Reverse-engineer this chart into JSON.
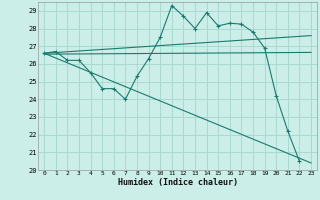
{
  "title": "",
  "xlabel": "Humidex (Indice chaleur)",
  "bg_color": "#cceee8",
  "grid_color": "#aad8d0",
  "line_color": "#1a7a6e",
  "xlim": [
    -0.5,
    23.5
  ],
  "ylim": [
    20,
    29.5
  ],
  "yticks": [
    20,
    21,
    22,
    23,
    24,
    25,
    26,
    27,
    28,
    29
  ],
  "xticks": [
    0,
    1,
    2,
    3,
    4,
    5,
    6,
    7,
    8,
    9,
    10,
    11,
    12,
    13,
    14,
    15,
    16,
    17,
    18,
    19,
    20,
    21,
    22,
    23
  ],
  "main_x": [
    0,
    1,
    2,
    3,
    4,
    5,
    6,
    7,
    8,
    9,
    10,
    11,
    12,
    13,
    14,
    15,
    16,
    17,
    18,
    19,
    20,
    21,
    22
  ],
  "main_y": [
    26.6,
    26.7,
    26.2,
    26.2,
    25.5,
    24.6,
    24.6,
    24.0,
    25.3,
    26.3,
    27.5,
    29.3,
    28.7,
    28.0,
    28.9,
    28.15,
    28.3,
    28.25,
    27.8,
    26.9,
    24.2,
    22.2,
    20.5
  ],
  "trend1_x": [
    0,
    23
  ],
  "trend1_y": [
    26.6,
    27.6
  ],
  "trend2_x": [
    0,
    23
  ],
  "trend2_y": [
    26.55,
    26.65
  ],
  "trend3_x": [
    0,
    23
  ],
  "trend3_y": [
    26.6,
    20.4
  ]
}
